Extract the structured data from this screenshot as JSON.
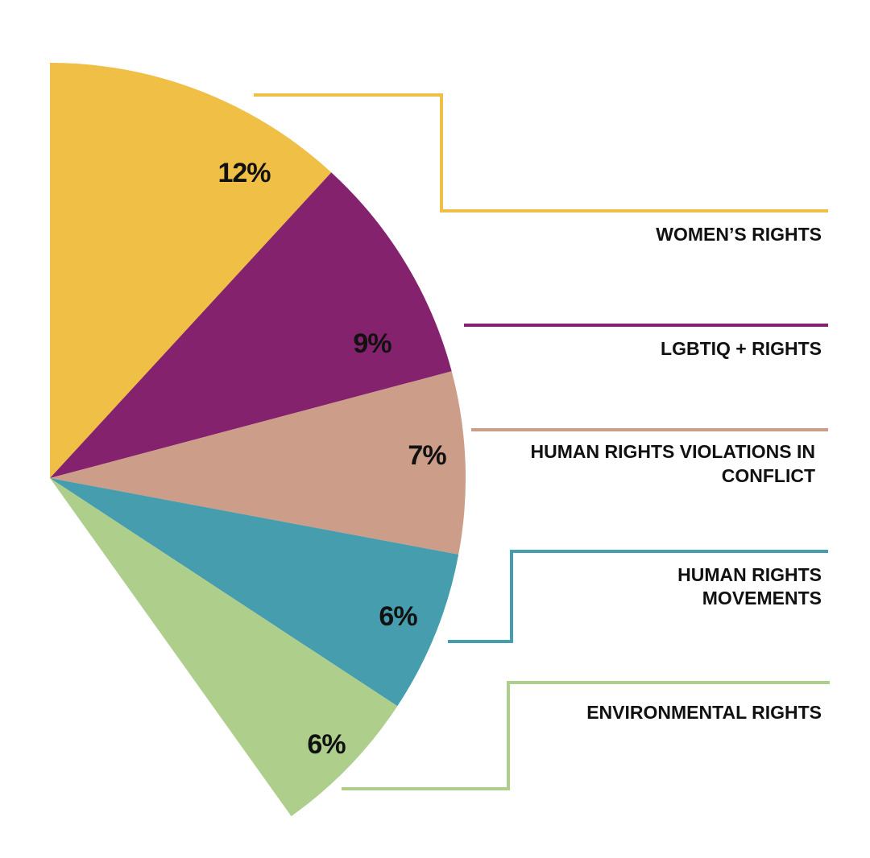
{
  "chart_data": {
    "type": "pie",
    "title": "",
    "series": [
      {
        "name": "WOMEN’S RIGHTS",
        "value": 12,
        "label": "12%",
        "color": "#EFBF46"
      },
      {
        "name": "LGBTIQ + RIGHTS",
        "value": 9,
        "label": "9%",
        "color": "#85226D"
      },
      {
        "name": "HUMAN RIGHTS VIOLATIONS IN CONFLICT",
        "value": 7,
        "label": "7%",
        "color": "#CC9D88"
      },
      {
        "name": "HUMAN RIGHTS MOVEMENTS",
        "value": 6,
        "label": "6%",
        "color": "#469DAD"
      },
      {
        "name": "ENVIRONMENTAL RIGHTS",
        "value": 6,
        "label": "6%",
        "color": "#AECE8C"
      }
    ],
    "legend": "right, connected to slices by leader lines",
    "unit": "%"
  }
}
